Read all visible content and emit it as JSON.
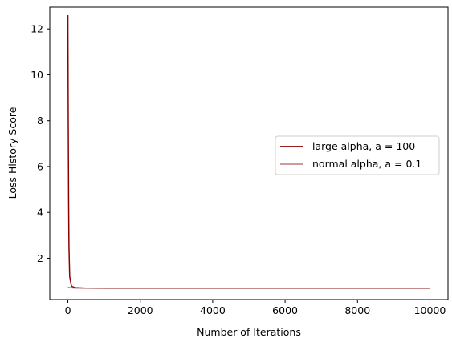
{
  "chart_data": {
    "type": "line",
    "title": "",
    "xlabel": "Number of Iterations",
    "ylabel": "Loss History Score",
    "xlim": [
      -500,
      10500
    ],
    "ylim": [
      0.2,
      12.95
    ],
    "xticks": [
      0,
      2000,
      4000,
      6000,
      8000,
      10000
    ],
    "yticks": [
      2,
      4,
      6,
      8,
      10,
      12
    ],
    "grid": false,
    "legend_position": "center-right",
    "series": [
      {
        "name": "large alpha, a = 100",
        "color": "#8b0000",
        "x": [
          0,
          10,
          20,
          30,
          50,
          100,
          200,
          500,
          1000,
          2000,
          4000,
          6000,
          8000,
          10000
        ],
        "y": [
          12.6,
          8.0,
          4.5,
          2.5,
          1.2,
          0.78,
          0.72,
          0.7,
          0.69,
          0.69,
          0.69,
          0.69,
          0.69,
          0.69
        ]
      },
      {
        "name": "normal alpha, a = 0.1",
        "color": "#c48e8e",
        "x": [
          0,
          100,
          200,
          500,
          1000,
          2000,
          4000,
          6000,
          8000,
          10000
        ],
        "y": [
          0.74,
          0.71,
          0.7,
          0.69,
          0.69,
          0.69,
          0.69,
          0.69,
          0.69,
          0.69
        ]
      }
    ]
  }
}
